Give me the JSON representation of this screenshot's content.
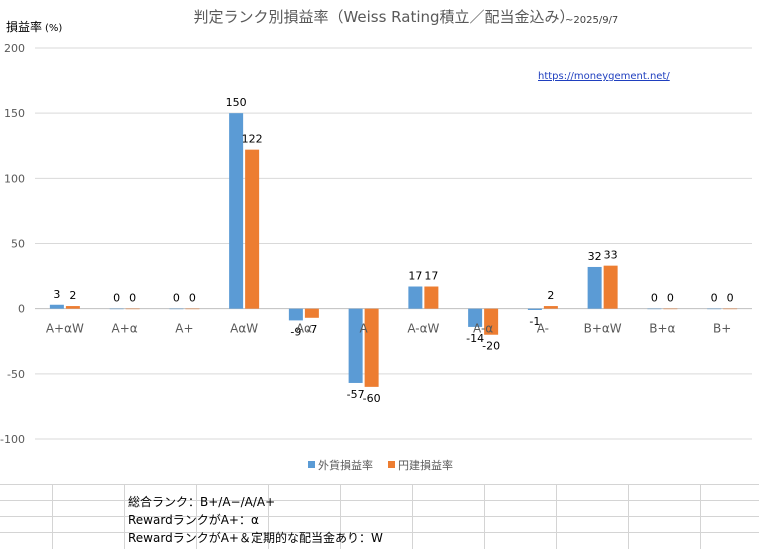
{
  "chart_data": {
    "type": "bar",
    "title": "判定ランク別損益率（Weiss Rating積立／配当金込み）",
    "subtitle": "~2025/9/7",
    "ylabel": "損益率",
    "ylabel_unit": "(%)",
    "ylim": [
      -100,
      200
    ],
    "yticks": [
      -100,
      -50,
      0,
      50,
      100,
      150,
      200
    ],
    "grid": true,
    "legend_position": "bottom",
    "categories": [
      "A+αW",
      "A+α",
      "A+",
      "AαW",
      "Aα",
      "A",
      "A-αW",
      "A-α",
      "A-",
      "B+αW",
      "B+α",
      "B+"
    ],
    "series": [
      {
        "name": "外貨損益率",
        "color": "#5b9bd5",
        "values": [
          3,
          0,
          0,
          150,
          -9,
          -57,
          17,
          -14,
          -1,
          32,
          0,
          0
        ]
      },
      {
        "name": "円建損益率",
        "color": "#ed7d31",
        "values": [
          2,
          0,
          0,
          122,
          -7,
          -60,
          17,
          -20,
          2,
          33,
          0,
          0
        ]
      }
    ],
    "annotation": "https://moneygement.net/"
  },
  "notes": [
    "総合ランク：B+/A−/A/A+",
    "RewardランクがA+：α",
    "RewardランクがA+＆定期的な配当金あり：W"
  ]
}
